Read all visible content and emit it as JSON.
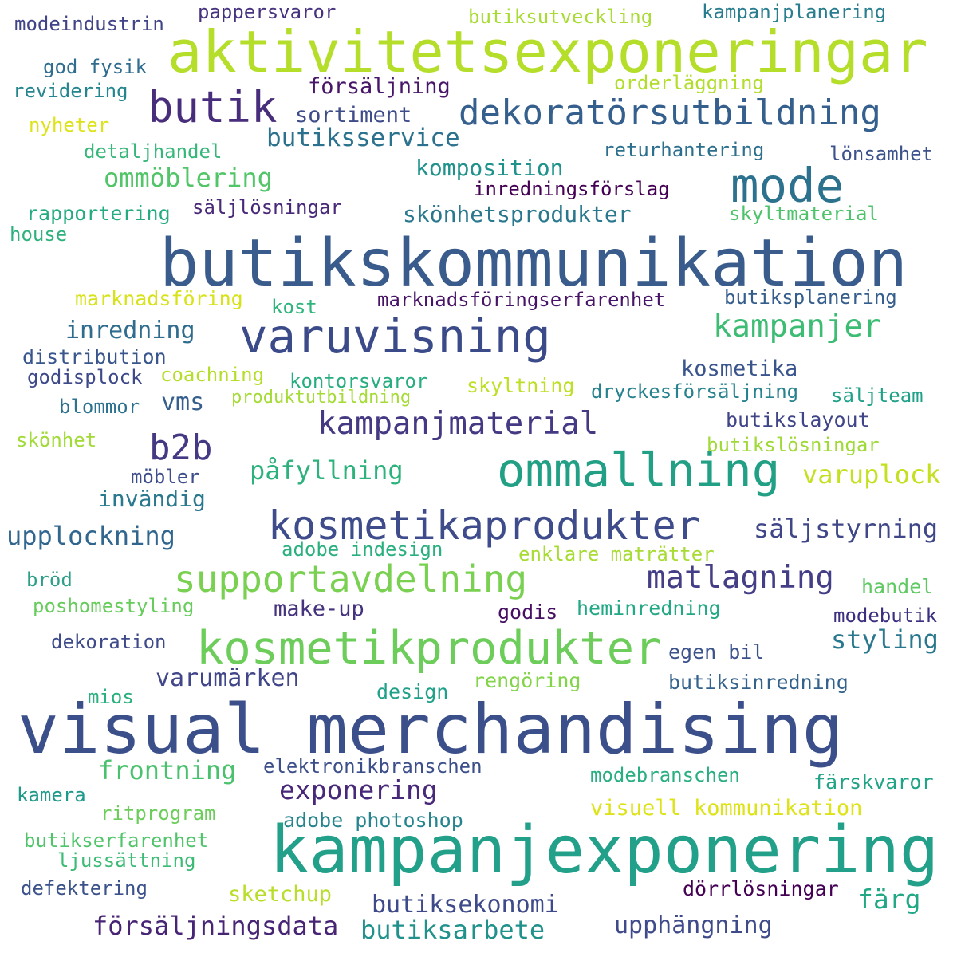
{
  "words": [
    {
      "text": "visual merchandising",
      "color": "#3b4f8a"
    },
    {
      "text": "butikskommunikation",
      "color": "#3a5c8c"
    },
    {
      "text": "kampanjexponering",
      "color": "#23a08a"
    },
    {
      "text": "aktivitetsexponeringar",
      "color": "#b5de2b"
    },
    {
      "text": "kosmetikprodukter",
      "color": "#6ccd5a"
    },
    {
      "text": "varuvisning",
      "color": "#3b4a88"
    },
    {
      "text": "ommallning",
      "color": "#22a085"
    },
    {
      "text": "kosmetikaprodukter",
      "color": "#3f4c8b"
    },
    {
      "text": "dekoratörsutbildning",
      "color": "#355f8d"
    },
    {
      "text": "supportavdelning",
      "color": "#7ad151"
    },
    {
      "text": "butik",
      "color": "#472d7b"
    },
    {
      "text": "mode",
      "color": "#2c728e"
    },
    {
      "text": "kampanjer",
      "color": "#3dbc74"
    },
    {
      "text": "matlagning",
      "color": "#433e85"
    },
    {
      "text": "kampanjmaterial",
      "color": "#443983"
    },
    {
      "text": "b2b",
      "color": "#443983"
    },
    {
      "text": "säljstyrning",
      "color": "#3f4788"
    },
    {
      "text": "frontning",
      "color": "#4ac16d"
    },
    {
      "text": "exponering",
      "color": "#482878"
    },
    {
      "text": "försäljningsdata",
      "color": "#482475"
    },
    {
      "text": "varuplock",
      "color": "#c5e021"
    },
    {
      "text": "upplockning",
      "color": "#31668e"
    },
    {
      "text": "styling",
      "color": "#2a788e"
    },
    {
      "text": "butiksarbete",
      "color": "#21918c"
    },
    {
      "text": "påfyllning",
      "color": "#2db27d"
    },
    {
      "text": "butiksservice",
      "color": "#2c728e"
    },
    {
      "text": "varumärken",
      "color": "#404688"
    },
    {
      "text": "butiksekonomi",
      "color": "#3e4a89"
    },
    {
      "text": "upphängning",
      "color": "#3f4a8a"
    },
    {
      "text": "färg",
      "color": "#22a884"
    },
    {
      "text": "ommöblering",
      "color": "#52c569"
    },
    {
      "text": "inredning",
      "color": "#2f6c8e"
    },
    {
      "text": "skönhetsprodukter",
      "color": "#2a788e"
    },
    {
      "text": "kosmetika",
      "color": "#3a548c"
    },
    {
      "text": "visuell kommunikation",
      "color": "#dde318"
    },
    {
      "text": "försäljning",
      "color": "#481668"
    },
    {
      "text": "komposition",
      "color": "#20928c"
    },
    {
      "text": "sortiment",
      "color": "#3e4c8a"
    },
    {
      "text": "invändig",
      "color": "#2a788e"
    },
    {
      "text": "make-up",
      "color": "#46337e"
    },
    {
      "text": "adobe photoshop",
      "color": "#25848e"
    },
    {
      "text": "sketchup",
      "color": "#b8de29"
    },
    {
      "text": "dörrlösningar",
      "color": "#440154"
    },
    {
      "text": "egen bil",
      "color": "#3b528b"
    },
    {
      "text": "butiksinredning",
      "color": "#33638d"
    },
    {
      "text": "design",
      "color": "#1fa088"
    },
    {
      "text": "rengöring",
      "color": "#84d44b"
    },
    {
      "text": "modebranschen",
      "color": "#29af7f"
    },
    {
      "text": "elektronikbranschen",
      "color": "#3c4f8a"
    },
    {
      "text": "färskvaror",
      "color": "#20a386"
    },
    {
      "text": "handel",
      "color": "#5ec962"
    },
    {
      "text": "heminredning",
      "color": "#22a884"
    },
    {
      "text": "godis",
      "color": "#471063"
    },
    {
      "text": "modebutik",
      "color": "#3b2f80"
    },
    {
      "text": "adobe indesign",
      "color": "#2ab07f"
    },
    {
      "text": "enklare maträtter",
      "color": "#a8db34"
    },
    {
      "text": "butikslayout",
      "color": "#404588"
    },
    {
      "text": "butikslösningar",
      "color": "#a0da39"
    },
    {
      "text": "säljteam",
      "color": "#1fa187"
    },
    {
      "text": "dryckesförsäljning",
      "color": "#26828e"
    },
    {
      "text": "skyltning",
      "color": "#bddf26"
    },
    {
      "text": "kontorsvaror",
      "color": "#27ad81"
    },
    {
      "text": "produktutbildning",
      "color": "#a5db36"
    },
    {
      "text": "vms",
      "color": "#355f8d"
    },
    {
      "text": "coachning",
      "color": "#b5de2b"
    },
    {
      "text": "godisplock",
      "color": "#3e4989"
    },
    {
      "text": "blommor",
      "color": "#2c728e"
    },
    {
      "text": "distribution",
      "color": "#39568c"
    },
    {
      "text": "skönhet",
      "color": "#a2da37"
    },
    {
      "text": "möbler",
      "color": "#3d4e8a"
    },
    {
      "text": "marknadsföringserfarenhet",
      "color": "#481467"
    },
    {
      "text": "kost",
      "color": "#2fb47c"
    },
    {
      "text": "marknadsföring",
      "color": "#d8e219"
    },
    {
      "text": "butiksplanering",
      "color": "#355e8d"
    },
    {
      "text": "skyltmaterial",
      "color": "#4ec36b"
    },
    {
      "text": "säljlösningar",
      "color": "#482878"
    },
    {
      "text": "inredningsförslag",
      "color": "#440154"
    },
    {
      "text": "rapportering",
      "color": "#25ab82"
    },
    {
      "text": "house",
      "color": "#2db27d"
    },
    {
      "text": "returhantering",
      "color": "#2d708e"
    },
    {
      "text": "lönsamhet",
      "color": "#3b528b"
    },
    {
      "text": "orderläggning",
      "color": "#b2dd2d"
    },
    {
      "text": "detaljhandel",
      "color": "#35b779"
    },
    {
      "text": "nyheter",
      "color": "#dde318"
    },
    {
      "text": "revidering",
      "color": "#25858e"
    },
    {
      "text": "god fysik",
      "color": "#2f6c8e"
    },
    {
      "text": "modeindustrin",
      "color": "#414487"
    },
    {
      "text": "pappersvaror",
      "color": "#46327e"
    },
    {
      "text": "butiksutveckling",
      "color": "#a8db34"
    },
    {
      "text": "kampanjplanering",
      "color": "#287d8e"
    },
    {
      "text": "upplockning ",
      "color": "#31668e"
    },
    {
      "text": "bröd",
      "color": "#2c9f88"
    },
    {
      "text": "poshomestyling",
      "color": "#67cc5c"
    },
    {
      "text": "dekoration",
      "color": "#3e4a89"
    },
    {
      "text": "mios",
      "color": "#2ab07f"
    },
    {
      "text": "kamera",
      "color": "#1f9a8a"
    },
    {
      "text": "ritprogram",
      "color": "#6ccd5a"
    },
    {
      "text": "butikserfarenhet",
      "color": "#50c46a"
    },
    {
      "text": "ljussättning",
      "color": "#3cbb75"
    },
    {
      "text": "defektering",
      "color": "#3b528b"
    }
  ]
}
